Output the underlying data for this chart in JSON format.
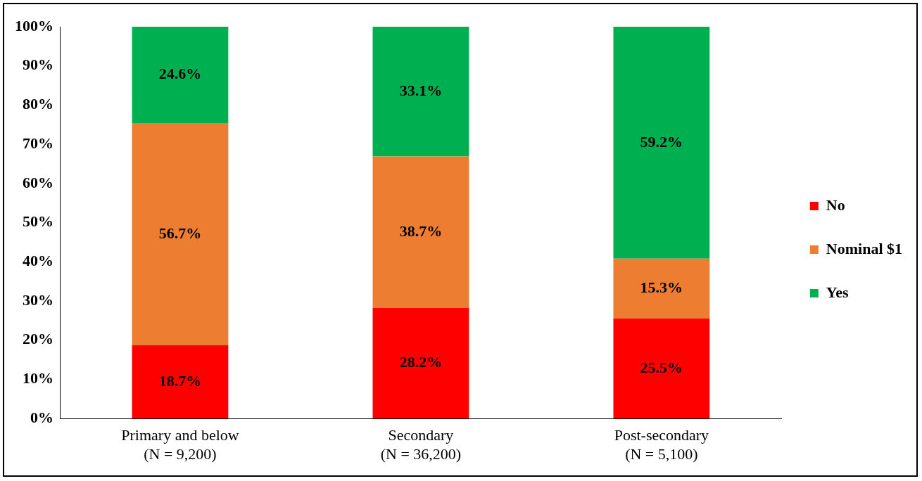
{
  "chart_data": {
    "type": "bar",
    "stacked": true,
    "categories": [
      "Primary and below\n(N = 9,200)",
      "Secondary\n(N = 36,200)",
      "Post-secondary\n(N = 5,100)"
    ],
    "series": [
      {
        "name": "No",
        "color": "#ff0000",
        "values": [
          18.7,
          28.2,
          25.5
        ],
        "value_labels": [
          "18.7%",
          "28.2%",
          "25.5%"
        ]
      },
      {
        "name": "Nominal $1",
        "color": "#ed7d31",
        "values": [
          56.7,
          38.7,
          15.3
        ],
        "value_labels": [
          "56.7%",
          "38.7%",
          "15.3%"
        ]
      },
      {
        "name": "Yes",
        "color": "#00b050",
        "values": [
          24.6,
          33.1,
          59.2
        ],
        "value_labels": [
          "24.6%",
          "33.1%",
          "59.2%"
        ]
      }
    ],
    "ylim": [
      0,
      100
    ],
    "yticks": [
      {
        "value": 0,
        "label": "0%"
      },
      {
        "value": 10,
        "label": "10%"
      },
      {
        "value": 20,
        "label": "20%"
      },
      {
        "value": 30,
        "label": "30%"
      },
      {
        "value": 40,
        "label": "40%"
      },
      {
        "value": 50,
        "label": "50%"
      },
      {
        "value": 60,
        "label": "60%"
      },
      {
        "value": 70,
        "label": "70%"
      },
      {
        "value": 80,
        "label": "80%"
      },
      {
        "value": 90,
        "label": "90%"
      },
      {
        "value": 100,
        "label": "100%"
      }
    ],
    "grid": false,
    "legend": "right"
  }
}
